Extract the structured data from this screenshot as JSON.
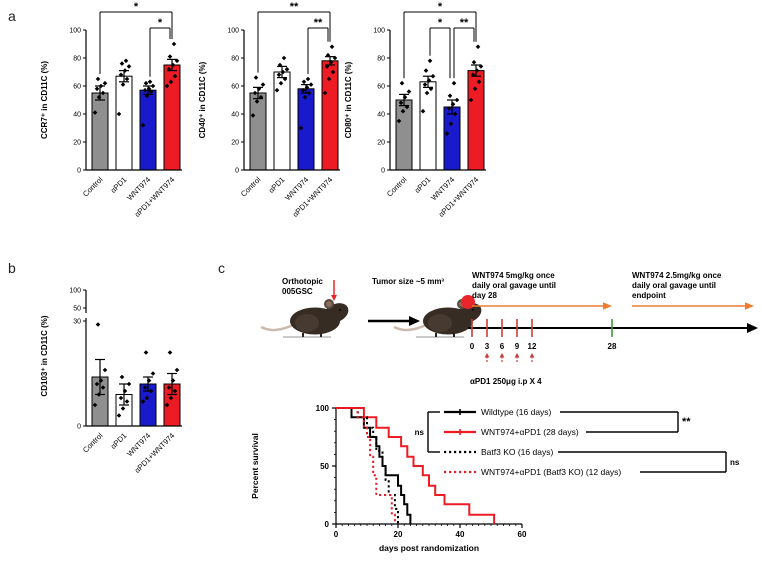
{
  "panels": {
    "a": "a",
    "b": "b",
    "c": "c"
  },
  "colors": {
    "bar_gray": "#8f8f8f",
    "bar_white": "#ffffff",
    "bar_blue": "#1a1acd",
    "bar_red": "#ed1c24",
    "orange_arrow": "#ED7D31",
    "green_tick": "#3a9a3a",
    "red_tick": "#cc3b3b",
    "red_accent": "#e8252a",
    "schematic_text": "#3b3b44",
    "axis": "#000000"
  },
  "group_labels": [
    "Control",
    "αPD1",
    "WNT974",
    "αPD1+WNT974"
  ],
  "bar_fills": [
    "bar_gray",
    "bar_white",
    "bar_blue",
    "bar_red"
  ],
  "chart_data": [
    {
      "id": "ccr7",
      "type": "bar",
      "panel": "a",
      "ylabel": "CCR7⁺ in CD11C (%)",
      "ylim": [
        0,
        100
      ],
      "yticks": [
        0,
        20,
        40,
        60,
        80,
        100
      ],
      "categories": [
        "Control",
        "αPD1",
        "WNT974",
        "αPD1+WNT974"
      ],
      "values": [
        55,
        67,
        57,
        75
      ],
      "errors": [
        5,
        4,
        3,
        4
      ],
      "points": [
        [
          41,
          52,
          55,
          58,
          60,
          62,
          65
        ],
        [
          40,
          61,
          65,
          68,
          71,
          74,
          76,
          78
        ],
        [
          32,
          53,
          56,
          57,
          58,
          60,
          62,
          63
        ],
        [
          60,
          63,
          67,
          72,
          75,
          78,
          81,
          90
        ]
      ],
      "significance": [
        {
          "from": 0,
          "to": 3,
          "label": "*",
          "level": 2
        },
        {
          "from": 2,
          "to": 3,
          "label": "*",
          "level": 1
        }
      ]
    },
    {
      "id": "cd40",
      "type": "bar",
      "panel": "a",
      "ylabel": "CD40⁺ in CD11C (%)",
      "ylim": [
        0,
        100
      ],
      "yticks": [
        0,
        20,
        40,
        60,
        80,
        100
      ],
      "categories": [
        "Control",
        "αPD1",
        "WNT974",
        "αPD1+WNT974"
      ],
      "values": [
        55,
        70,
        58,
        78
      ],
      "errors": [
        4,
        4,
        3,
        3
      ],
      "points": [
        [
          39,
          49,
          52,
          55,
          58,
          61,
          66
        ],
        [
          57,
          62,
          65,
          68,
          70,
          72,
          75,
          80
        ],
        [
          30,
          52,
          55,
          57,
          59,
          61,
          63,
          65
        ],
        [
          55,
          65,
          70,
          74,
          77,
          80,
          82,
          88
        ]
      ],
      "significance": [
        {
          "from": 0,
          "to": 3,
          "label": "**",
          "level": 2
        },
        {
          "from": 2,
          "to": 3,
          "label": "**",
          "level": 1
        }
      ]
    },
    {
      "id": "cd80",
      "type": "bar",
      "panel": "a",
      "ylabel": "CD80⁺ in CD11C (%)",
      "ylim": [
        0,
        100
      ],
      "yticks": [
        0,
        20,
        40,
        60,
        80,
        100
      ],
      "categories": [
        "Control",
        "αPD1",
        "WNT974",
        "αPD1+WNT974"
      ],
      "values": [
        50,
        63,
        45,
        71
      ],
      "errors": [
        4,
        4,
        5,
        4
      ],
      "points": [
        [
          35,
          42,
          45,
          48,
          52,
          56,
          62
        ],
        [
          42,
          55,
          58,
          61,
          64,
          67,
          71,
          78
        ],
        [
          26,
          33,
          40,
          44,
          47,
          50,
          53,
          62
        ],
        [
          50,
          58,
          63,
          68,
          71,
          74,
          77,
          88
        ]
      ],
      "significance": [
        {
          "from": 0,
          "to": 3,
          "label": "*",
          "level": 2
        },
        {
          "from": 1,
          "to": 2,
          "label": "*",
          "level": 1
        },
        {
          "from": 2,
          "to": 3,
          "label": "**",
          "level": 1
        }
      ]
    },
    {
      "id": "cd103",
      "type": "bar",
      "panel": "b",
      "broken_axis": true,
      "ylabel": "CD103⁺ in CD11C (%)",
      "ylim": [
        0,
        100
      ],
      "yticks": [
        0,
        30,
        50,
        100
      ],
      "categories": [
        "Control",
        "αPD1",
        "WNT974",
        "αPD1+WNT974"
      ],
      "values": [
        14,
        9,
        12,
        12
      ],
      "errors": [
        5,
        3,
        2,
        3
      ],
      "points": [
        [
          6,
          9,
          11,
          12,
          13,
          16,
          29
        ],
        [
          3,
          5,
          7,
          8,
          10,
          12,
          14
        ],
        [
          7,
          8,
          10,
          11,
          13,
          15,
          21
        ],
        [
          6,
          8,
          10,
          11,
          13,
          16,
          21
        ]
      ],
      "significance": []
    },
    {
      "id": "survival",
      "type": "km",
      "panel": "c",
      "xlabel": "days post randomization",
      "ylabel": "Percent survival",
      "xlim": [
        0,
        60
      ],
      "xticks": [
        0,
        20,
        40,
        60
      ],
      "yticks": [
        0,
        50,
        100
      ],
      "series": [
        {
          "name": "Wildtype (16 days)",
          "color": "#000000",
          "style": "solid",
          "steps": [
            [
              0,
              100
            ],
            [
              5,
              100
            ],
            [
              5,
              92
            ],
            [
              9,
              92
            ],
            [
              9,
              83
            ],
            [
              11,
              83
            ],
            [
              11,
              75
            ],
            [
              13,
              75
            ],
            [
              13,
              67
            ],
            [
              14,
              67
            ],
            [
              14,
              58
            ],
            [
              15,
              58
            ],
            [
              15,
              50
            ],
            [
              16,
              50
            ],
            [
              16,
              42
            ],
            [
              20,
              42
            ],
            [
              20,
              33
            ],
            [
              21,
              33
            ],
            [
              21,
              25
            ],
            [
              22,
              25
            ],
            [
              22,
              17
            ],
            [
              23,
              17
            ],
            [
              23,
              8
            ],
            [
              24,
              8
            ],
            [
              24,
              0
            ]
          ]
        },
        {
          "name": "WNT974+αPD1 (28 days)",
          "color": "#ed1c24",
          "style": "solid",
          "steps": [
            [
              0,
              100
            ],
            [
              9,
              100
            ],
            [
              9,
              92
            ],
            [
              13,
              92
            ],
            [
              13,
              83
            ],
            [
              17,
              83
            ],
            [
              17,
              75
            ],
            [
              21,
              75
            ],
            [
              21,
              67
            ],
            [
              23,
              67
            ],
            [
              23,
              58
            ],
            [
              25,
              58
            ],
            [
              25,
              50
            ],
            [
              28,
              50
            ],
            [
              28,
              42
            ],
            [
              30,
              42
            ],
            [
              30,
              33
            ],
            [
              32,
              33
            ],
            [
              32,
              25
            ],
            [
              35,
              25
            ],
            [
              35,
              17
            ],
            [
              43,
              17
            ],
            [
              43,
              8
            ],
            [
              51,
              8
            ],
            [
              51,
              0
            ]
          ]
        },
        {
          "name": "Batf3 KO (16 days)",
          "color": "#000000",
          "style": "dashed",
          "steps": [
            [
              0,
              100
            ],
            [
              7,
              100
            ],
            [
              7,
              92
            ],
            [
              10,
              92
            ],
            [
              10,
              83
            ],
            [
              12,
              83
            ],
            [
              12,
              75
            ],
            [
              13,
              75
            ],
            [
              13,
              63
            ],
            [
              15,
              63
            ],
            [
              15,
              50
            ],
            [
              16,
              50
            ],
            [
              16,
              38
            ],
            [
              17,
              38
            ],
            [
              17,
              25
            ],
            [
              19,
              25
            ],
            [
              19,
              13
            ],
            [
              20,
              13
            ],
            [
              20,
              0
            ]
          ]
        },
        {
          "name": "WNT974+αPD1 (Batf3 KO) (12 days)",
          "color": "#ed1c24",
          "style": "dashed",
          "steps": [
            [
              0,
              100
            ],
            [
              7,
              100
            ],
            [
              7,
              92
            ],
            [
              9,
              92
            ],
            [
              9,
              83
            ],
            [
              10,
              83
            ],
            [
              10,
              75
            ],
            [
              11,
              75
            ],
            [
              11,
              58
            ],
            [
              12,
              58
            ],
            [
              12,
              42
            ],
            [
              13,
              42
            ],
            [
              13,
              25
            ],
            [
              18,
              25
            ],
            [
              18,
              8
            ],
            [
              19,
              8
            ],
            [
              19,
              0
            ]
          ]
        }
      ],
      "legend_brackets": [
        {
          "rows": [
            0,
            1
          ],
          "side": "right",
          "label": "**"
        },
        {
          "rows": [
            2,
            3
          ],
          "side": "right",
          "label": "ns"
        },
        {
          "rows": [
            0,
            2
          ],
          "side": "left",
          "label": "ns"
        }
      ]
    }
  ],
  "schematic": {
    "mouse1_label": "Orthotopic\n005GSC",
    "mouse2_label": "Tumor size ~5 mm³",
    "arrow1_text": "WNT974 5mg/kg once\ndaily oral gavage until\nday 28",
    "arrow2_text": "WNT974 2.5mg/kg once\ndaily oral gavage until\nendpoint",
    "timeline_ticks": [
      0,
      3,
      6,
      9,
      12,
      28
    ],
    "apd1_injection_days": [
      3,
      6,
      9,
      12
    ],
    "apd1_label": "αPD1   250μg i.p X 4"
  }
}
